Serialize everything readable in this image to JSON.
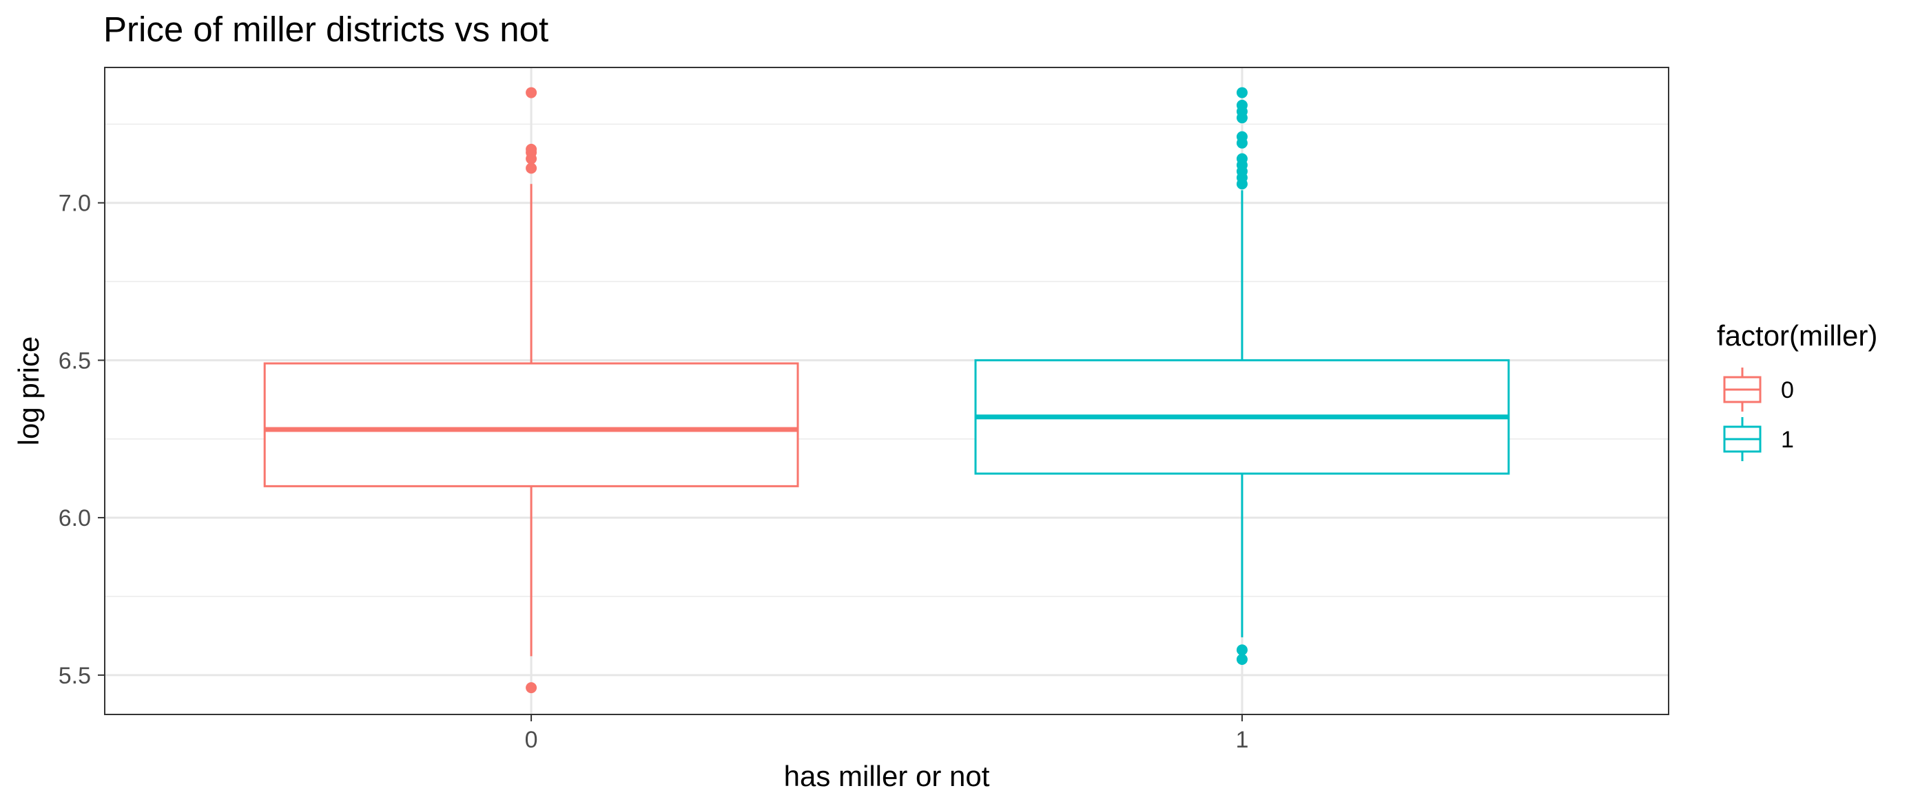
{
  "chart_data": {
    "type": "boxplot",
    "title": "Price of miller districts vs not",
    "xlabel": "has miller or not",
    "ylabel": "log price",
    "ylim": [
      5.375,
      7.43
    ],
    "y_ticks": [
      5.5,
      6.0,
      6.5,
      7.0
    ],
    "y_tick_labels": [
      "5.5",
      "6.0",
      "6.5",
      "7.0"
    ],
    "categories": [
      "0",
      "1"
    ],
    "grid": true,
    "legend": {
      "title": "factor(miller)",
      "position": "right",
      "entries": [
        "0",
        "1"
      ]
    },
    "boxes": [
      {
        "category": "0",
        "color": "#F8766D",
        "lower_whisker": 5.56,
        "q1": 6.1,
        "median": 6.28,
        "q3": 6.49,
        "upper_whisker": 7.06,
        "outliers": [
          5.46,
          7.11,
          7.14,
          7.16,
          7.17,
          7.35
        ]
      },
      {
        "category": "1",
        "color": "#00BFC4",
        "lower_whisker": 5.62,
        "q1": 6.14,
        "median": 6.32,
        "q3": 6.5,
        "upper_whisker": 7.04,
        "outliers": [
          5.55,
          5.58,
          7.06,
          7.08,
          7.1,
          7.12,
          7.14,
          7.19,
          7.21,
          7.27,
          7.29,
          7.31,
          7.35
        ]
      }
    ]
  }
}
